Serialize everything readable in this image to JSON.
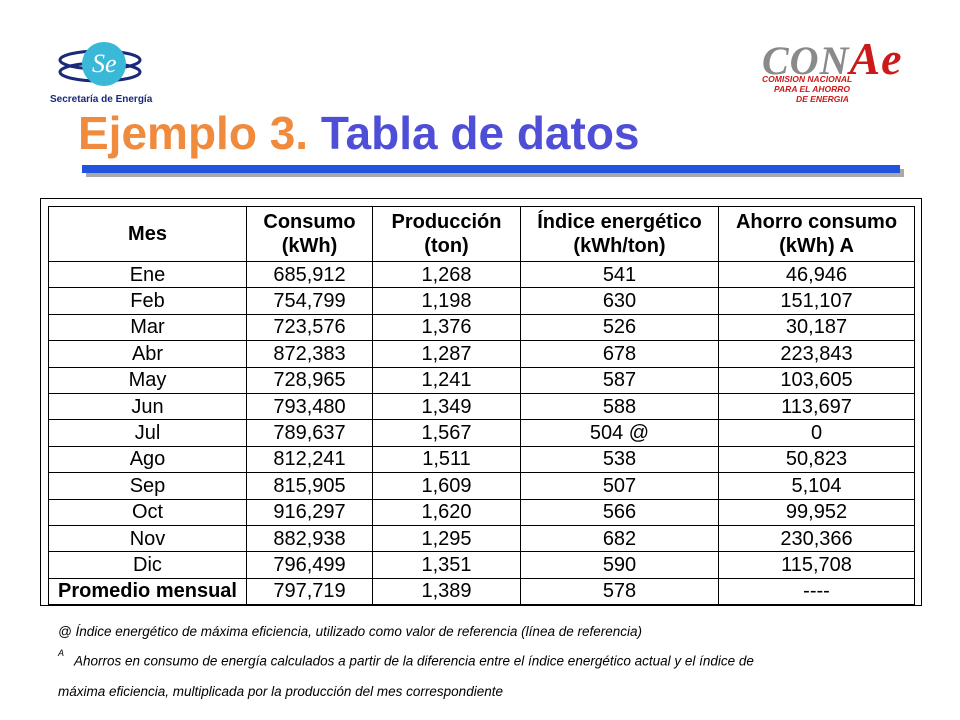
{
  "header": {
    "left_logo": {
      "icon": "sener-logo",
      "caption": "Secretaría de Energía"
    },
    "right_logo": {
      "icon": "conae-logo",
      "word_main": "CON",
      "word_e": "Ae",
      "sub_line1": "COMISION NACIONAL",
      "sub_line2": "PARA EL AHORRO",
      "sub_line3": "DE ENERGIA"
    },
    "title_part1": "Ejemplo 3.",
    "title_part2": "Tabla de datos",
    "accent_color": "#2452e0",
    "title_color_1": "#f08a3c",
    "title_color_2": "#4e4ed6"
  },
  "table": {
    "headers": [
      {
        "line1": "Mes",
        "line2": ""
      },
      {
        "line1": "Consumo",
        "line2": "(kWh)"
      },
      {
        "line1": "Producción",
        "line2": "(ton)"
      },
      {
        "line1": "Índice energético",
        "line2": "(kWh/ton)"
      },
      {
        "line1": "Ahorro consumo",
        "line2": "(kWh) A"
      }
    ],
    "rows": [
      [
        "Ene",
        "685,912",
        "1,268",
        "541",
        "46,946"
      ],
      [
        "Feb",
        "754,799",
        "1,198",
        "630",
        "151,107"
      ],
      [
        "Mar",
        "723,576",
        "1,376",
        "526",
        "30,187"
      ],
      [
        "Abr",
        "872,383",
        "1,287",
        "678",
        "223,843"
      ],
      [
        "May",
        "728,965",
        "1,241",
        "587",
        "103,605"
      ],
      [
        "Jun",
        "793,480",
        "1,349",
        "588",
        "113,697"
      ],
      [
        "Jul",
        "789,637",
        "1,567",
        "504 @",
        "0"
      ],
      [
        "Ago",
        "812,241",
        "1,511",
        "538",
        "50,823"
      ],
      [
        "Sep",
        "815,905",
        "1,609",
        "507",
        "5,104"
      ],
      [
        "Oct",
        "916,297",
        "1,620",
        "566",
        "99,952"
      ],
      [
        "Nov",
        "882,938",
        "1,295",
        "682",
        "230,366"
      ],
      [
        "Dic",
        "796,499",
        "1,351",
        "590",
        "115,708"
      ]
    ],
    "summary_row": [
      "Promedio mensual",
      "797,719",
      "1,389",
      "578",
      "----"
    ]
  },
  "notes": {
    "note1": "@  Índice energético de máxima eficiencia, utilizado como valor de referencia (línea de referencia)",
    "note2_marker": "A",
    "note2": "Ahorros en consumo de energía calculados a partir de la diferencia entre el índice energético actual y el índice de",
    "note3": "máxima eficiencia, multiplicada por la producción del mes correspondiente"
  }
}
